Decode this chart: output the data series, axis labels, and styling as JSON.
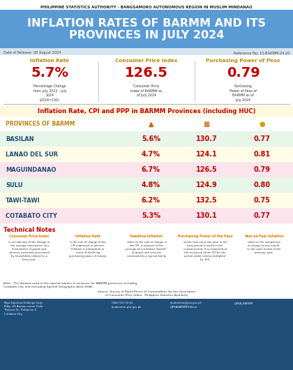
{
  "header_text": "PHILIPPINE STATISTICS AUTHORITY - BANGSAMORO AUTONOMOUS REGION IN MUSLIM MINDANAO",
  "title_line1": "INFLATION RATES OF BARMM AND ITS",
  "title_line2": "PROVINCES IN JULY 2024",
  "date_release": "Date of Release: 08 August 2024",
  "reference_no": "Reference No: 10-BARMM-24-20",
  "kpi_labels": [
    "Inflation Rate",
    "Consumer Price Index",
    "Purchasing Power of Peso"
  ],
  "kpi_values": [
    "5.7%",
    "126.5",
    "0.79"
  ],
  "kpi_sublabels": [
    "Percentage Change\nfrom July 2023 - July\n2024\n(2018=100)",
    "Consumer Price\nIndex of BARMM as\nof July 2024",
    "Purchasing\nPower of Peso of\nBARMM as of\nJuly 2024"
  ],
  "table_title": "Inflation Rate, CPI and PPP in BARMM Provinces (including HUC)",
  "col_header": "PROVINCES OF BARMM",
  "provinces": [
    "BASILAN",
    "LANAO DEL SUR",
    "MAGUINDANAO",
    "SULU",
    "TAWI-TAWI",
    "COTABATO CITY"
  ],
  "inflation": [
    "5.6%",
    "4.7%",
    "6.7%",
    "4.8%",
    "6.2%",
    "5.3%"
  ],
  "cpi": [
    "130.7",
    "124.1",
    "126.5",
    "124.9",
    "132.5",
    "130.1"
  ],
  "ppp": [
    "0.77",
    "0.81",
    "0.79",
    "0.80",
    "0.75",
    "0.77"
  ],
  "row_colors": [
    "#e8f5e9",
    "#fffde7",
    "#fce4ec",
    "#e8f5e9",
    "#fffde7",
    "#fce4ec"
  ],
  "tech_notes_title": "Technical Notes",
  "tech_note_headers": [
    "Consumer Price Index",
    "Inflation Rate",
    "Headline Inflation",
    "Purchasing Power of the Peso",
    "Year-on-Year Inflation"
  ],
  "tech_note_bodies": [
    "is an indicator of the change in\nthe average retail prices of a\nfixed basket of goods and\nservices commonly purchased\nby households relative to a\nbase year.",
    "is the rate of change of the\nCPI expressed in percent.\nInflation is interpreted in\nterms of declining\npurchasing power of money.",
    "refers to the rate of change in\nthe CPI, a measure of the\naverage of a standard \"basket\"\nof goods and services\nconsumed by a typical family.",
    "shows how much the peso in the\nbase period is worth in the\ncurrent period. It is computed as\nthe reciprocal of the CPI for the\nperiod under review multiplied\nby 100.",
    "refers to the comparison\nof change of one month\nto the same month of the\nprevious year."
  ],
  "note_text": "Note:  The dataset used in the special release is exclusive for BARMM provinces including\nCotabato City and excluding Special Geographic Area (SGA).",
  "source_text": "Source: Survey of Retail Prices of Commodities for the Generation\nof Consumer Price Index,  Philippine Statistics Authority",
  "bg_header_color": "#5b9bd5",
  "kpi_color": "#c00000",
  "province_name_color": "#1f4e79",
  "table_title_color": "#c00000",
  "col_header_color": "#b8860b",
  "tech_title_color": "#c00000",
  "tech_header_color": "#e07b00",
  "footer_bg": "#1f4e79",
  "datebar_color": "#d6e4f0",
  "table_title_bg": "#fff8e1",
  "white": "#ffffff"
}
